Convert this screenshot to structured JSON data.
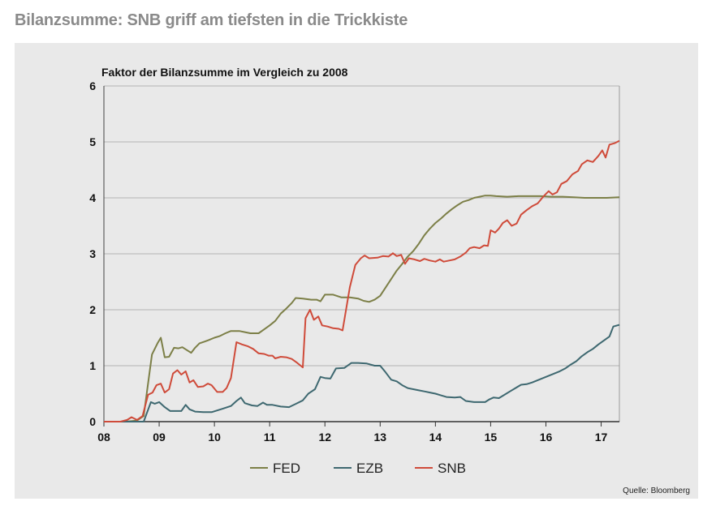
{
  "headline": "Bilanzsumme: SNB griff am tiefsten in die Trickkiste",
  "source": "Quelle: Bloomberg",
  "colors": {
    "FED": "#7c7f47",
    "EZB": "#3e6870",
    "SNB": "#cf4b3a",
    "grid": "#b3b3b3",
    "panel": "#e9e9e9"
  },
  "chart_data": {
    "type": "line",
    "title": "Faktor der Bilanzsumme im Vergleich zu 2008",
    "xlabel": "",
    "ylabel": "",
    "xlim": [
      8,
      17.33
    ],
    "ylim": [
      0,
      6
    ],
    "grid": true,
    "legend_position": "bottom-center",
    "x_ticks": [
      8,
      9,
      10,
      11,
      12,
      13,
      14,
      15,
      16,
      17
    ],
    "x_tick_labels": [
      "08",
      "09",
      "10",
      "11",
      "12",
      "13",
      "14",
      "15",
      "16",
      "17"
    ],
    "y_ticks": [
      0,
      1,
      2,
      3,
      4,
      5,
      6
    ],
    "y_tick_labels": [
      "0",
      "1",
      "2",
      "3",
      "4",
      "5",
      "6"
    ],
    "series": [
      {
        "name": "FED",
        "points": [
          [
            8.0,
            0
          ],
          [
            8.2,
            0
          ],
          [
            8.4,
            0
          ],
          [
            8.6,
            0.02
          ],
          [
            8.72,
            0.1
          ],
          [
            8.87,
            1.2
          ],
          [
            8.97,
            1.4
          ],
          [
            9.03,
            1.5
          ],
          [
            9.1,
            1.15
          ],
          [
            9.18,
            1.16
          ],
          [
            9.27,
            1.32
          ],
          [
            9.35,
            1.31
          ],
          [
            9.42,
            1.33
          ],
          [
            9.5,
            1.28
          ],
          [
            9.58,
            1.23
          ],
          [
            9.65,
            1.32
          ],
          [
            9.73,
            1.4
          ],
          [
            9.82,
            1.43
          ],
          [
            9.9,
            1.46
          ],
          [
            10.0,
            1.5
          ],
          [
            10.1,
            1.53
          ],
          [
            10.2,
            1.58
          ],
          [
            10.3,
            1.62
          ],
          [
            10.45,
            1.62
          ],
          [
            10.55,
            1.6
          ],
          [
            10.65,
            1.58
          ],
          [
            10.8,
            1.58
          ],
          [
            10.9,
            1.65
          ],
          [
            11.0,
            1.72
          ],
          [
            11.1,
            1.8
          ],
          [
            11.2,
            1.93
          ],
          [
            11.3,
            2.02
          ],
          [
            11.4,
            2.12
          ],
          [
            11.47,
            2.21
          ],
          [
            11.6,
            2.2
          ],
          [
            11.75,
            2.18
          ],
          [
            11.85,
            2.18
          ],
          [
            11.92,
            2.15
          ],
          [
            12.0,
            2.27
          ],
          [
            12.15,
            2.27
          ],
          [
            12.3,
            2.22
          ],
          [
            12.45,
            2.22
          ],
          [
            12.6,
            2.2
          ],
          [
            12.7,
            2.16
          ],
          [
            12.8,
            2.14
          ],
          [
            12.9,
            2.18
          ],
          [
            13.0,
            2.25
          ],
          [
            13.1,
            2.4
          ],
          [
            13.2,
            2.55
          ],
          [
            13.3,
            2.7
          ],
          [
            13.4,
            2.82
          ],
          [
            13.5,
            2.95
          ],
          [
            13.6,
            3.05
          ],
          [
            13.7,
            3.18
          ],
          [
            13.8,
            3.33
          ],
          [
            13.9,
            3.45
          ],
          [
            14.0,
            3.55
          ],
          [
            14.1,
            3.63
          ],
          [
            14.2,
            3.72
          ],
          [
            14.3,
            3.8
          ],
          [
            14.4,
            3.87
          ],
          [
            14.5,
            3.93
          ],
          [
            14.6,
            3.96
          ],
          [
            14.7,
            4.0
          ],
          [
            14.8,
            4.02
          ],
          [
            14.9,
            4.04
          ],
          [
            15.0,
            4.04
          ],
          [
            15.1,
            4.03
          ],
          [
            15.3,
            4.02
          ],
          [
            15.5,
            4.03
          ],
          [
            15.7,
            4.03
          ],
          [
            15.9,
            4.03
          ],
          [
            16.1,
            4.02
          ],
          [
            16.3,
            4.02
          ],
          [
            16.5,
            4.01
          ],
          [
            16.7,
            4.0
          ],
          [
            16.9,
            4.0
          ],
          [
            17.1,
            4.0
          ],
          [
            17.33,
            4.01
          ]
        ]
      },
      {
        "name": "EZB",
        "points": [
          [
            8.0,
            0
          ],
          [
            8.6,
            0
          ],
          [
            8.72,
            0
          ],
          [
            8.85,
            0.35
          ],
          [
            8.92,
            0.32
          ],
          [
            9.0,
            0.35
          ],
          [
            9.1,
            0.26
          ],
          [
            9.2,
            0.19
          ],
          [
            9.4,
            0.19
          ],
          [
            9.48,
            0.3
          ],
          [
            9.55,
            0.22
          ],
          [
            9.65,
            0.18
          ],
          [
            9.8,
            0.17
          ],
          [
            9.95,
            0.17
          ],
          [
            10.05,
            0.2
          ],
          [
            10.15,
            0.23
          ],
          [
            10.3,
            0.28
          ],
          [
            10.4,
            0.37
          ],
          [
            10.48,
            0.43
          ],
          [
            10.55,
            0.33
          ],
          [
            10.68,
            0.29
          ],
          [
            10.78,
            0.28
          ],
          [
            10.88,
            0.34
          ],
          [
            10.95,
            0.3
          ],
          [
            11.05,
            0.3
          ],
          [
            11.2,
            0.27
          ],
          [
            11.35,
            0.26
          ],
          [
            11.48,
            0.32
          ],
          [
            11.6,
            0.38
          ],
          [
            11.7,
            0.5
          ],
          [
            11.82,
            0.58
          ],
          [
            11.92,
            0.8
          ],
          [
            12.0,
            0.78
          ],
          [
            12.1,
            0.77
          ],
          [
            12.2,
            0.95
          ],
          [
            12.35,
            0.96
          ],
          [
            12.48,
            1.05
          ],
          [
            12.6,
            1.05
          ],
          [
            12.75,
            1.04
          ],
          [
            12.9,
            1.0
          ],
          [
            13.0,
            1.0
          ],
          [
            13.1,
            0.88
          ],
          [
            13.2,
            0.75
          ],
          [
            13.3,
            0.72
          ],
          [
            13.4,
            0.65
          ],
          [
            13.5,
            0.6
          ],
          [
            13.6,
            0.58
          ],
          [
            13.7,
            0.56
          ],
          [
            13.8,
            0.54
          ],
          [
            13.9,
            0.52
          ],
          [
            14.0,
            0.5
          ],
          [
            14.1,
            0.47
          ],
          [
            14.2,
            0.44
          ],
          [
            14.35,
            0.43
          ],
          [
            14.45,
            0.44
          ],
          [
            14.55,
            0.37
          ],
          [
            14.7,
            0.35
          ],
          [
            14.9,
            0.35
          ],
          [
            14.98,
            0.4
          ],
          [
            15.05,
            0.43
          ],
          [
            15.15,
            0.42
          ],
          [
            15.25,
            0.48
          ],
          [
            15.35,
            0.54
          ],
          [
            15.45,
            0.6
          ],
          [
            15.55,
            0.66
          ],
          [
            15.65,
            0.67
          ],
          [
            15.75,
            0.7
          ],
          [
            15.85,
            0.74
          ],
          [
            15.95,
            0.78
          ],
          [
            16.05,
            0.82
          ],
          [
            16.15,
            0.86
          ],
          [
            16.25,
            0.9
          ],
          [
            16.35,
            0.95
          ],
          [
            16.45,
            1.02
          ],
          [
            16.55,
            1.08
          ],
          [
            16.65,
            1.17
          ],
          [
            16.75,
            1.24
          ],
          [
            16.85,
            1.3
          ],
          [
            16.95,
            1.38
          ],
          [
            17.05,
            1.45
          ],
          [
            17.15,
            1.52
          ],
          [
            17.22,
            1.7
          ],
          [
            17.33,
            1.73
          ]
        ]
      },
      {
        "name": "SNB",
        "points": [
          [
            8.0,
            0
          ],
          [
            8.3,
            0
          ],
          [
            8.42,
            0.03
          ],
          [
            8.5,
            0.08
          ],
          [
            8.6,
            0.03
          ],
          [
            8.7,
            0.1
          ],
          [
            8.8,
            0.48
          ],
          [
            8.88,
            0.52
          ],
          [
            8.95,
            0.65
          ],
          [
            9.03,
            0.68
          ],
          [
            9.1,
            0.52
          ],
          [
            9.18,
            0.58
          ],
          [
            9.25,
            0.86
          ],
          [
            9.33,
            0.92
          ],
          [
            9.4,
            0.84
          ],
          [
            9.48,
            0.9
          ],
          [
            9.55,
            0.7
          ],
          [
            9.62,
            0.74
          ],
          [
            9.7,
            0.62
          ],
          [
            9.8,
            0.63
          ],
          [
            9.88,
            0.68
          ],
          [
            9.95,
            0.65
          ],
          [
            10.05,
            0.53
          ],
          [
            10.15,
            0.53
          ],
          [
            10.22,
            0.6
          ],
          [
            10.3,
            0.78
          ],
          [
            10.4,
            1.42
          ],
          [
            10.5,
            1.38
          ],
          [
            10.6,
            1.35
          ],
          [
            10.7,
            1.3
          ],
          [
            10.8,
            1.22
          ],
          [
            10.9,
            1.21
          ],
          [
            10.98,
            1.18
          ],
          [
            11.05,
            1.18
          ],
          [
            11.1,
            1.13
          ],
          [
            11.2,
            1.16
          ],
          [
            11.3,
            1.15
          ],
          [
            11.4,
            1.12
          ],
          [
            11.5,
            1.05
          ],
          [
            11.6,
            0.97
          ],
          [
            11.65,
            1.85
          ],
          [
            11.73,
            2.0
          ],
          [
            11.8,
            1.82
          ],
          [
            11.88,
            1.88
          ],
          [
            11.95,
            1.72
          ],
          [
            12.05,
            1.7
          ],
          [
            12.15,
            1.67
          ],
          [
            12.25,
            1.66
          ],
          [
            12.32,
            1.63
          ],
          [
            12.45,
            2.4
          ],
          [
            12.55,
            2.8
          ],
          [
            12.65,
            2.92
          ],
          [
            12.72,
            2.97
          ],
          [
            12.8,
            2.92
          ],
          [
            12.95,
            2.93
          ],
          [
            13.05,
            2.96
          ],
          [
            13.15,
            2.95
          ],
          [
            13.23,
            3.01
          ],
          [
            13.3,
            2.96
          ],
          [
            13.38,
            2.98
          ],
          [
            13.45,
            2.82
          ],
          [
            13.52,
            2.92
          ],
          [
            13.62,
            2.9
          ],
          [
            13.72,
            2.87
          ],
          [
            13.8,
            2.91
          ],
          [
            13.9,
            2.88
          ],
          [
            14.0,
            2.86
          ],
          [
            14.08,
            2.9
          ],
          [
            14.15,
            2.86
          ],
          [
            14.25,
            2.88
          ],
          [
            14.35,
            2.9
          ],
          [
            14.45,
            2.95
          ],
          [
            14.55,
            3.02
          ],
          [
            14.62,
            3.1
          ],
          [
            14.7,
            3.12
          ],
          [
            14.8,
            3.1
          ],
          [
            14.88,
            3.15
          ],
          [
            14.95,
            3.14
          ],
          [
            15.0,
            3.42
          ],
          [
            15.08,
            3.38
          ],
          [
            15.15,
            3.45
          ],
          [
            15.22,
            3.55
          ],
          [
            15.3,
            3.6
          ],
          [
            15.38,
            3.5
          ],
          [
            15.47,
            3.54
          ],
          [
            15.55,
            3.7
          ],
          [
            15.65,
            3.78
          ],
          [
            15.75,
            3.85
          ],
          [
            15.85,
            3.9
          ],
          [
            15.95,
            4.02
          ],
          [
            16.05,
            4.12
          ],
          [
            16.12,
            4.06
          ],
          [
            16.2,
            4.1
          ],
          [
            16.28,
            4.25
          ],
          [
            16.38,
            4.3
          ],
          [
            16.48,
            4.42
          ],
          [
            16.58,
            4.48
          ],
          [
            16.65,
            4.6
          ],
          [
            16.75,
            4.67
          ],
          [
            16.85,
            4.64
          ],
          [
            16.95,
            4.75
          ],
          [
            17.02,
            4.85
          ],
          [
            17.08,
            4.72
          ],
          [
            17.15,
            4.95
          ],
          [
            17.25,
            4.98
          ],
          [
            17.33,
            5.02
          ]
        ]
      }
    ]
  }
}
